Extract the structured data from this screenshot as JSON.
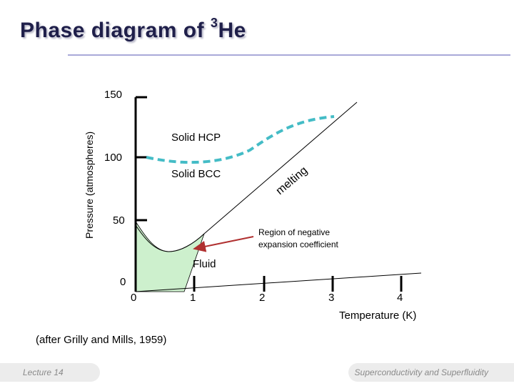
{
  "slide": {
    "title_main": "Phase diagram of ",
    "title_sup": "3",
    "title_end": "He",
    "accent_color": "#1f1f4a"
  },
  "diagram": {
    "y_axis_label": "Pressure (atmospheres)",
    "x_axis_label": "Temperature (K)",
    "y_ticks": [
      "150",
      "100",
      "50",
      "0"
    ],
    "x_ticks": [
      "0",
      "1",
      "2",
      "3",
      "4"
    ],
    "labels": {
      "solid_hcp": "Solid HCP",
      "solid_bcc": "Solid BCC",
      "melting": "melting",
      "fluid": "Fluid",
      "region_line1": "Region of negative",
      "region_line2": "expansion coefficient"
    },
    "colors": {
      "dashed_boundary": "#44bcc6",
      "negative_region": "#cdf0cd",
      "arrow": "#b03030"
    }
  },
  "citation": "(after Grilly and Mills, 1959)",
  "footer": {
    "left": "Lecture 14",
    "right": "Superconductivity and Superfluidity"
  }
}
